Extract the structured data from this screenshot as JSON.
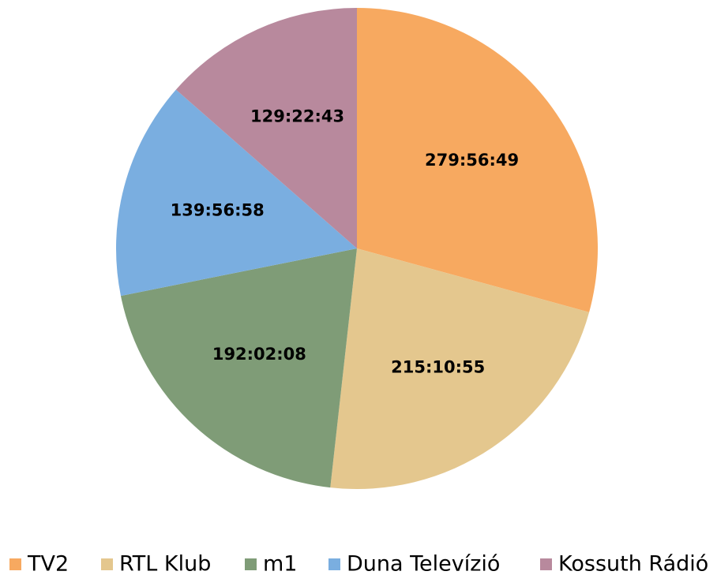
{
  "chart_data": {
    "type": "pie",
    "categories": [
      "TV2",
      "RTL Klub",
      "m1",
      "Duna Televízió",
      "Kossuth Rádió"
    ],
    "values": [
      1007809,
      774655,
      691328,
      503818,
      465763
    ],
    "value_labels": [
      "279:56:49",
      "215:10:55",
      "192:02:08",
      "139:56:58",
      "129:22:43"
    ],
    "colors": [
      "#f7a960",
      "#e4c78e",
      "#7f9c77",
      "#7aaee0",
      "#b8899d"
    ],
    "legend": "bottom"
  }
}
